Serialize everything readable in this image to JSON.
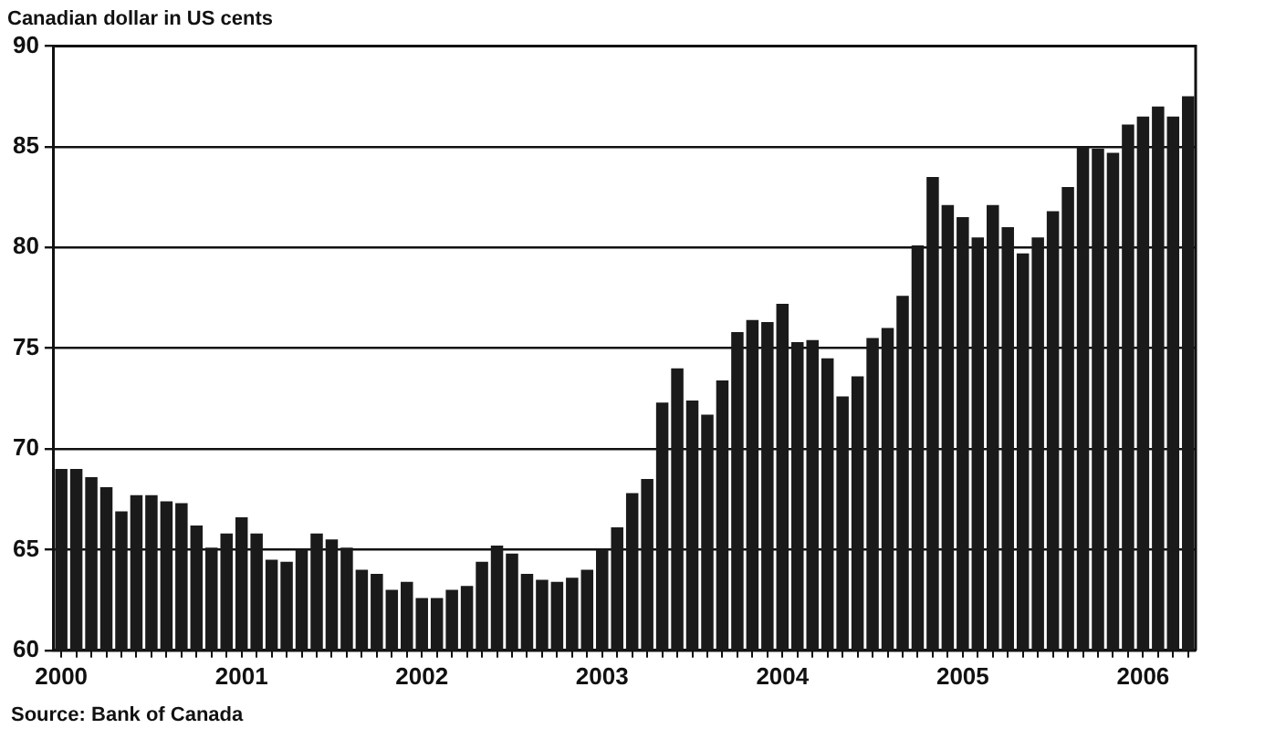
{
  "chart_data": {
    "type": "bar",
    "title": "Canadian dollar in US cents",
    "categories": [
      "2000",
      null,
      null,
      null,
      null,
      null,
      null,
      null,
      null,
      null,
      null,
      null,
      "2001",
      null,
      null,
      null,
      null,
      null,
      null,
      null,
      null,
      null,
      null,
      null,
      "2002",
      null,
      null,
      null,
      null,
      null,
      null,
      null,
      null,
      null,
      null,
      null,
      "2003",
      null,
      null,
      null,
      null,
      null,
      null,
      null,
      null,
      null,
      null,
      null,
      "2004",
      null,
      null,
      null,
      null,
      null,
      null,
      null,
      null,
      null,
      null,
      null,
      "2005",
      null,
      null,
      null,
      null,
      null,
      null,
      null,
      null,
      null,
      null,
      null,
      "2006",
      null,
      null,
      null
    ],
    "values": [
      69.0,
      69.0,
      68.6,
      68.1,
      66.9,
      67.7,
      67.7,
      67.4,
      67.3,
      66.2,
      65.1,
      65.8,
      66.6,
      65.8,
      64.5,
      64.4,
      65.0,
      65.8,
      65.5,
      65.1,
      64.0,
      63.8,
      63.0,
      63.4,
      62.6,
      62.6,
      63.0,
      63.2,
      64.4,
      65.2,
      64.8,
      63.8,
      63.5,
      63.4,
      63.6,
      64.0,
      65.0,
      66.1,
      67.8,
      68.5,
      72.3,
      74.0,
      72.4,
      71.7,
      73.4,
      75.8,
      76.4,
      76.3,
      77.2,
      75.3,
      75.4,
      74.5,
      72.6,
      73.6,
      75.5,
      76.0,
      77.6,
      80.1,
      83.5,
      82.1,
      81.5,
      80.5,
      82.1,
      81.0,
      79.7,
      80.5,
      81.8,
      83.0,
      85.0,
      84.9,
      84.7,
      86.1,
      86.5,
      87.0,
      86.5,
      87.5
    ],
    "color": "#1a1a1a",
    "ylim": [
      60,
      90
    ],
    "yticks": [
      60,
      65,
      70,
      75,
      80,
      85,
      90
    ],
    "grid": "y",
    "annotations": [
      "Source: Bank of Canada"
    ]
  }
}
